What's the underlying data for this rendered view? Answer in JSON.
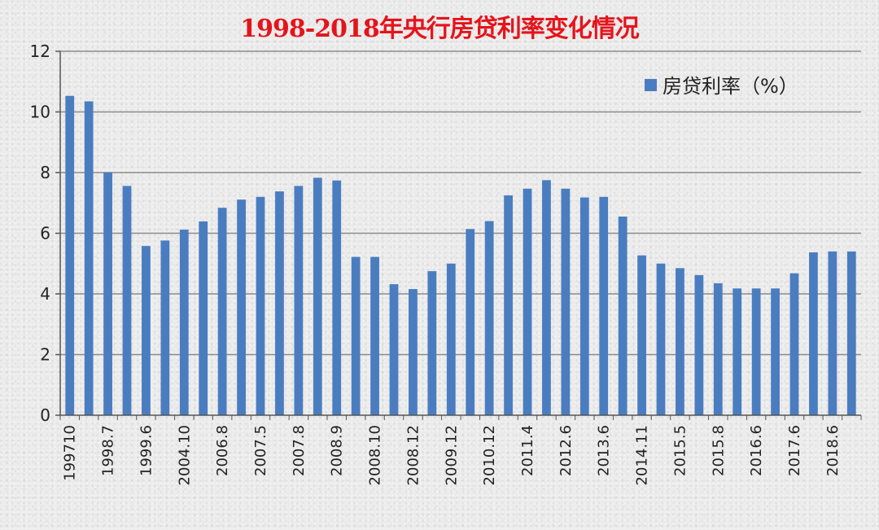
{
  "chart_data": {
    "type": "bar",
    "title": "1998-2018年央行房贷利率变化情况",
    "legend": {
      "label": "房贷利率（%）",
      "position": "top-right",
      "color": "#4a7dc0"
    },
    "ylim": [
      0,
      12
    ],
    "yticks": [
      0,
      2,
      4,
      6,
      8,
      10,
      12
    ],
    "grid": true,
    "colors": {
      "bar": "#4a7dc0",
      "grid": "#8c8c8c",
      "axis": "#555555",
      "title": "#e5141b"
    },
    "x_tick_labels": [
      "199710",
      "1998.7",
      "1999.6",
      "2004.10",
      "2006.8",
      "2007.5",
      "2007.8",
      "2008.9",
      "2008.10",
      "2008.12",
      "2009.12",
      "2010.12",
      "2011.4",
      "2012.6",
      "2013.6",
      "2014.11",
      "2015.5",
      "2015.8",
      "2016.6",
      "2017.6",
      "2018.6"
    ],
    "x_tick_positions": [
      0,
      2,
      4,
      6,
      8,
      10,
      12,
      14,
      16,
      18,
      20,
      22,
      24,
      26,
      28,
      30,
      32,
      34,
      36,
      38,
      40
    ],
    "values": [
      10.53,
      10.35,
      8.01,
      7.56,
      5.58,
      5.76,
      6.12,
      6.39,
      6.84,
      7.11,
      7.2,
      7.38,
      7.56,
      7.83,
      7.74,
      5.22,
      5.22,
      4.32,
      4.16,
      4.75,
      5.0,
      6.14,
      6.4,
      7.25,
      7.47,
      7.75,
      7.47,
      7.18,
      7.2,
      6.55,
      5.27,
      5.0,
      4.85,
      4.62,
      4.35,
      4.18,
      4.18,
      4.18,
      4.68,
      5.37,
      5.4,
      5.4
    ]
  }
}
